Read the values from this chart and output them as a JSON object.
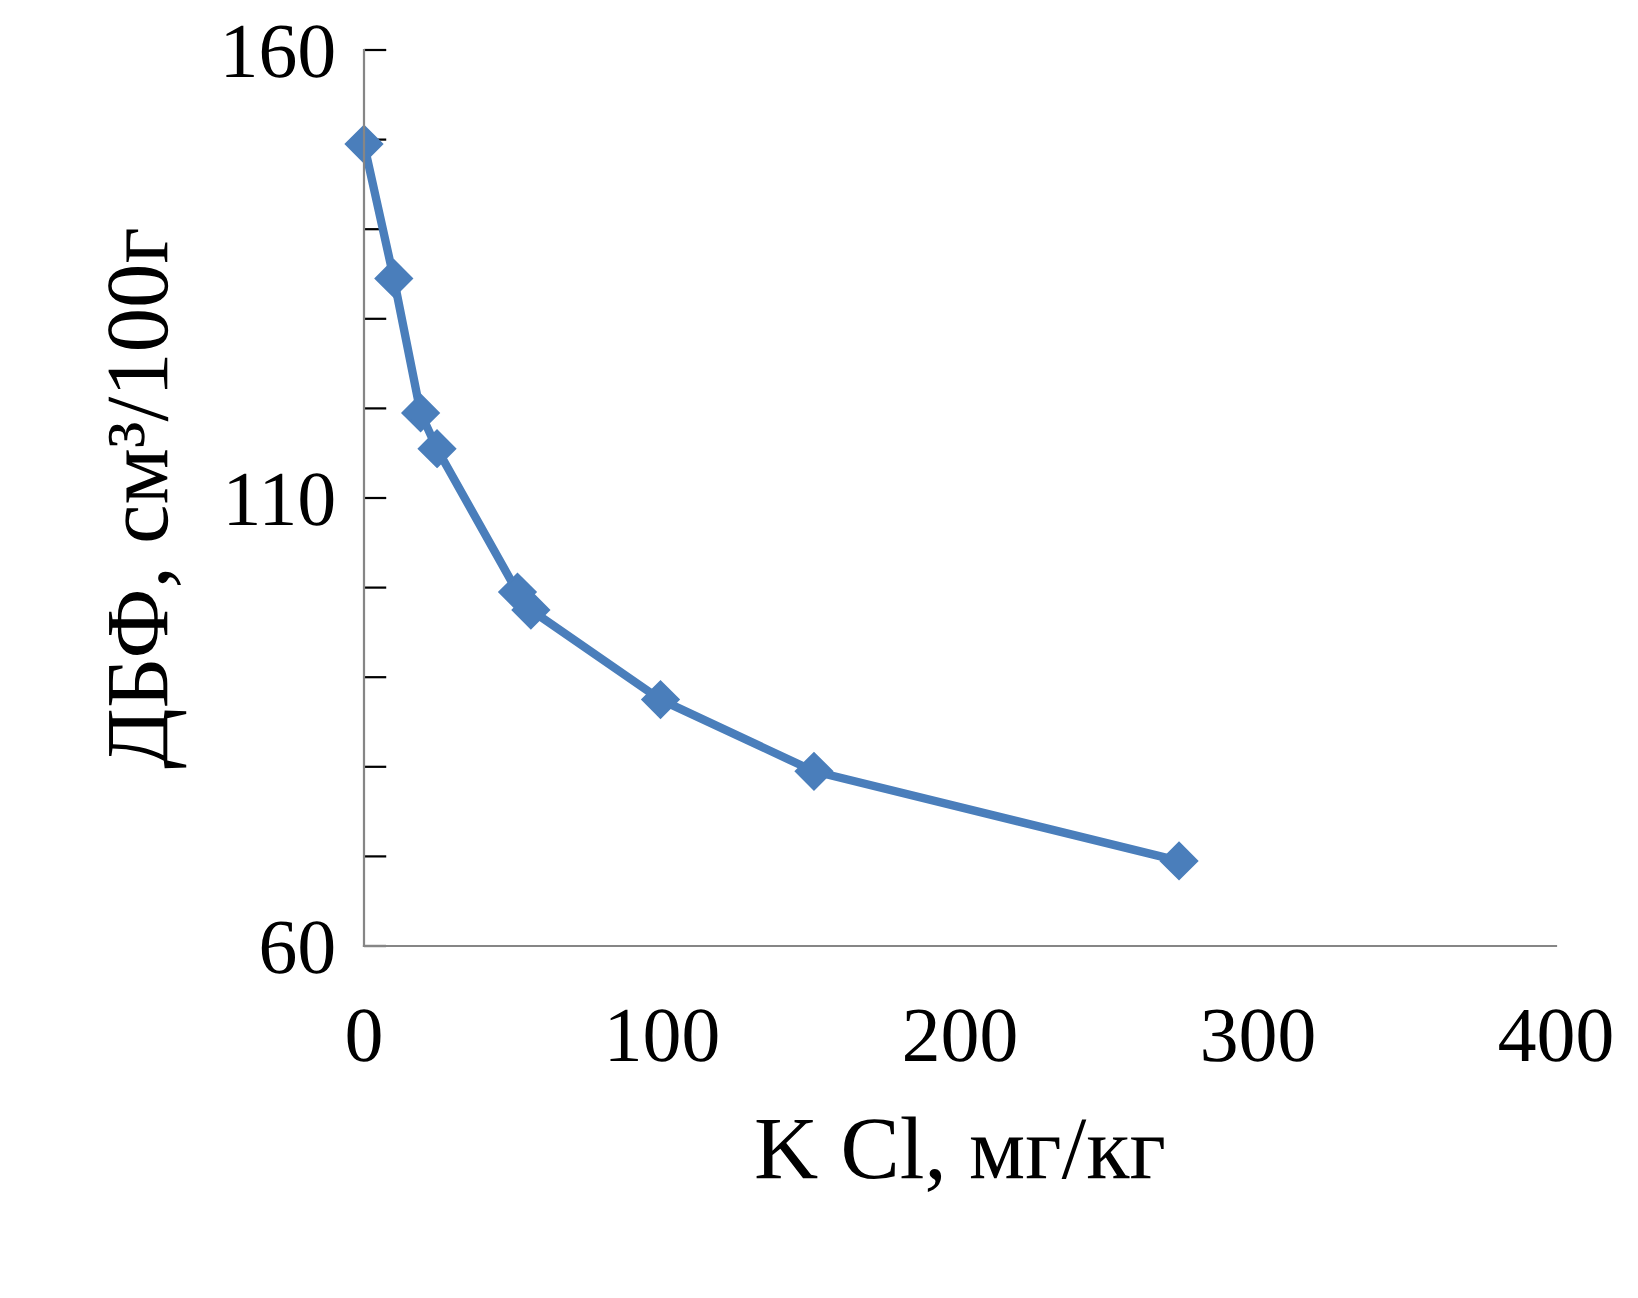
{
  "chart_data": {
    "type": "line",
    "xlabel": "K Cl, мг/кг",
    "ylabel": "ДБФ, см³/100г",
    "x": [
      0,
      10,
      19,
      24.5,
      51.5,
      56,
      99.5,
      151,
      273.5
    ],
    "series": [
      {
        "color": "#4a7ebb",
        "values": [
          149.5,
          134.5,
          119.5,
          115.5,
          99.5,
          97.5,
          87.5,
          79.5,
          69.5
        ]
      }
    ],
    "xlim": [
      0,
      400
    ],
    "xticks": [
      0,
      100,
      200,
      300,
      400
    ],
    "ylim": [
      60,
      160
    ],
    "yticks": [
      60,
      {
        "value": 70,
        "label": null
      },
      {
        "value": 80,
        "label": null
      },
      {
        "value": 90,
        "label": null
      },
      {
        "value": 100,
        "label": null
      },
      110,
      {
        "value": 120,
        "label": null
      },
      {
        "value": 130,
        "label": null
      },
      {
        "value": 140,
        "label": null
      },
      {
        "value": 150,
        "label": null
      },
      160
    ],
    "marker": "diamond",
    "line_style": "solid",
    "grid": false,
    "legend": false
  }
}
